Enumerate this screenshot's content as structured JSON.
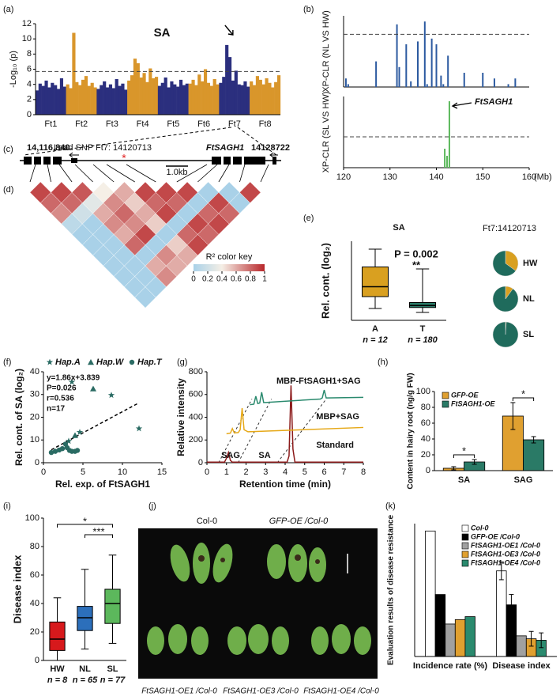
{
  "panel_labels": [
    "(a)",
    "(b)",
    "(c)",
    "(d)",
    "(e)",
    "(f)",
    "(g)",
    "(h)",
    "(i)",
    "(j)",
    "(k)"
  ],
  "gene_diagram": {
    "start": "14,116,840",
    "lead_snp": "Lead SNP Ft7: 14120713",
    "gene": "FtSAGH1",
    "end": "14128722",
    "scale": "1.0kb"
  },
  "photo": {
    "labels": [
      "Col-0",
      "GFP-OE /Col-0",
      "FtSAGH1-OE1 /Col-0",
      "FtSAGH1-OE3 /Col-0",
      "FtSAGH1-OE4 /Col-0"
    ]
  },
  "chart_data": [
    {
      "type": "manhattan",
      "title": "SA",
      "y_label": "-Log₁₀ (p)",
      "categories": [
        "Ft1",
        "Ft2",
        "Ft3",
        "Ft4",
        "Ft5",
        "Ft6",
        "Ft7",
        "Ft8"
      ],
      "colors": [
        "#2b2f7e",
        "#d9962b"
      ],
      "values": [
        [
          3.2,
          4.1,
          3.8,
          4.5,
          3.6,
          4.2,
          3.9,
          3.4,
          4.8,
          3.7
        ],
        [
          4.0,
          3.5,
          10.8,
          4.3,
          3.9,
          4.6,
          5.1,
          3.8,
          4.2,
          3.6
        ],
        [
          3.4,
          3.9,
          4.4,
          3.6,
          4.0,
          3.5,
          4.7,
          3.8,
          4.1,
          3.3
        ],
        [
          4.5,
          5.2,
          7.4,
          6.8,
          4.9,
          5.5,
          4.3,
          6.1,
          4.8,
          5.0
        ],
        [
          3.8,
          4.2,
          4.9,
          3.6,
          4.4,
          4.0,
          3.7,
          4.6,
          3.9,
          4.1
        ],
        [
          4.1,
          4.6,
          3.9,
          5.3,
          4.4,
          6.0,
          4.2,
          3.8,
          4.7,
          4.0
        ],
        [
          4.2,
          5.0,
          9.2,
          7.6,
          4.5,
          5.8,
          4.0,
          3.9,
          4.4,
          3.7
        ],
        [
          4.4,
          3.9,
          5.1,
          4.6,
          4.0,
          4.8,
          4.2,
          3.6,
          4.3,
          5.2
        ]
      ],
      "ylim": [
        0,
        12
      ],
      "yticks": [
        0,
        2,
        4,
        6,
        8,
        10,
        12
      ],
      "threshold": 5.7
    },
    {
      "type": "bar",
      "y_label": "XP-CLR (NL VS HW)",
      "color": "#2c5aa0",
      "x": [
        120.5,
        121,
        127,
        131.5,
        132,
        133.5,
        134.5,
        136,
        137.5,
        138,
        139,
        140,
        141,
        141.5,
        142.5,
        146,
        150,
        152.5,
        155.5,
        157
      ],
      "values": [
        3,
        1,
        9,
        22,
        7,
        15,
        2,
        16,
        23,
        1,
        17,
        15,
        4,
        1,
        11,
        5,
        5,
        3,
        1,
        3
      ],
      "xlim": [
        120,
        160
      ],
      "ylim": [
        0,
        25
      ],
      "threshold": 18.5
    },
    {
      "type": "bar",
      "y_label": "XP-CLR (SL VS HW)",
      "x_label": "(Mb)",
      "color": "#5cb85c",
      "annotation": "FtSAGH1",
      "x": [
        141.8,
        142.3,
        142.8
      ],
      "values": [
        8,
        5,
        28
      ],
      "xlim": [
        120,
        160
      ],
      "xticks": [
        120,
        130,
        140,
        150,
        160
      ],
      "ylim": [
        0,
        30
      ],
      "threshold": 13
    },
    {
      "type": "ld_heatmap",
      "legend_title": "R² color key",
      "ticks": [
        0,
        0.2,
        0.4,
        0.6,
        0.8,
        1
      ],
      "r2": [
        [
          0.9,
          0.8,
          0.7,
          0.1,
          0.0,
          0.0,
          0.0,
          0.0,
          0.0,
          0.0,
          0.0
        ],
        [
          0.9,
          0.8,
          0.2,
          0.0,
          0.0,
          0.0,
          0.0,
          0.0,
          0.0,
          0.0
        ],
        [
          0.85,
          0.3,
          0.6,
          0.7,
          0.6,
          0.8,
          0.0,
          0.6,
          0.7
        ],
        [
          0.4,
          0.7,
          0.8,
          0.7,
          0.9,
          0.0,
          0.7,
          0.6
        ],
        [
          0.6,
          0.5,
          0.6,
          0.5,
          0.0,
          0.5,
          0.6
        ],
        [
          0.9,
          0.8,
          0.9,
          0.0,
          0.8,
          0.9
        ],
        [
          0.9,
          0.8,
          0.0,
          0.9,
          0.8
        ],
        [
          0.9,
          0.0,
          0.8,
          0.9
        ],
        [
          0.0,
          0.9,
          0.8
        ],
        [
          0.0,
          0.0
        ],
        [
          0.9
        ]
      ]
    },
    {
      "type": "box",
      "title": "SA",
      "y_label": "Rel. cont. (log₂)",
      "categories": [
        "A",
        "T"
      ],
      "n_labels": [
        "n = 12",
        "n = 180"
      ],
      "colors": [
        "#d9a020",
        "#2a7a66"
      ],
      "boxes": [
        {
          "min": 6,
          "q1": 12,
          "median": 17,
          "q3": 27,
          "max": 36
        },
        {
          "min": 4,
          "q1": 6.5,
          "median": 7.5,
          "q3": 9,
          "max": 26
        }
      ],
      "ylim": [
        0,
        40
      ],
      "annotations": [
        "P = 0.002",
        "**"
      ]
    },
    {
      "type": "pie",
      "title": "Ft7:14120713",
      "categories": [
        "HW",
        "NL",
        "SL"
      ],
      "colors": [
        "#d9a020",
        "#1f6b5c"
      ],
      "values": [
        [
          35,
          65
        ],
        [
          10,
          90
        ],
        [
          1,
          99
        ]
      ]
    },
    {
      "type": "scatter",
      "x_label": "Rel. exp. of FtSAGH1",
      "y_label": "Rel. cont. of SA (log₂)",
      "series": [
        {
          "name": "Hap.A",
          "marker": "star",
          "color": "#2a6b63",
          "x": [
            3.6,
            8.6,
            12.1,
            4.6,
            3.2
          ],
          "values": [
            35.5,
            29.7,
            15,
            13.4,
            9.5
          ]
        },
        {
          "name": "Hap.W",
          "marker": "triangle",
          "color": "#2a6b63",
          "x": [
            6.3,
            4.0
          ],
          "values": [
            32.5,
            12
          ]
        },
        {
          "name": "Hap.T",
          "marker": "circle",
          "color": "#2a6b63",
          "x": [
            1,
            1.5,
            2,
            2.4,
            2.8,
            3,
            3.3,
            3.6,
            4,
            4.3
          ],
          "values": [
            4.5,
            5,
            5.6,
            6.2,
            8.2,
            6.6,
            5.4,
            5,
            5,
            5.4
          ]
        }
      ],
      "fit": {
        "label": "y=1.86x+3.839",
        "slope": 1.86,
        "intercept": 3.839
      },
      "annotations": [
        "P=0.026",
        "r=0.536",
        "n=17"
      ],
      "xlim": [
        0,
        15
      ],
      "xticks": [
        0,
        5,
        10,
        15
      ],
      "ylim": [
        0,
        40
      ],
      "yticks": [
        0,
        10,
        20,
        30,
        40
      ]
    },
    {
      "type": "line",
      "x_label": "Retention time (min)",
      "y_label": "Relative intensity",
      "series": [
        {
          "name": "Standard",
          "color": "#8b1a1a",
          "x": [
            0,
            0.9,
            1.0,
            1.1,
            1.2,
            1.3,
            4.1,
            4.2,
            4.3,
            4.4,
            4.5,
            8
          ],
          "values": [
            5,
            5,
            40,
            90,
            20,
            5,
            5,
            60,
            680,
            120,
            5,
            5
          ]
        },
        {
          "name": "MBP+SAG",
          "color": "#e6a817",
          "x": [
            1.0,
            1.2,
            1.3,
            1.4,
            1.6,
            1.7,
            1.8,
            1.9,
            2.1,
            8
          ],
          "values": [
            255,
            260,
            300,
            262,
            265,
            290,
            480,
            290,
            272,
            310
          ]
        },
        {
          "name": "MBP-FtSAGH1+SAG",
          "color": "#2a8a6e",
          "x": [
            2.2,
            2.4,
            2.5,
            2.6,
            2.7,
            2.8,
            2.9,
            3.0,
            5.8,
            5.9,
            6.0,
            6.1,
            8
          ],
          "values": [
            510,
            515,
            585,
            520,
            525,
            620,
            530,
            530,
            560,
            570,
            640,
            570,
            575
          ]
        }
      ],
      "annotations": [
        "SAG",
        "SA"
      ],
      "xlim": [
        0,
        8
      ],
      "xticks": [
        0,
        1,
        2,
        3,
        4,
        5,
        6,
        7,
        8
      ],
      "ylim": [
        0,
        800
      ],
      "yticks": [
        0,
        200,
        400,
        600,
        800
      ]
    },
    {
      "type": "grouped_bar",
      "y_label": "Content in hairy root (ng/g FW)",
      "categories": [
        "SA",
        "SAG"
      ],
      "series": [
        {
          "name": "GFP-OE",
          "color": "#e0a030",
          "values": [
            3,
            69
          ],
          "errors": [
            2,
            17
          ]
        },
        {
          "name": "FtSAGH1-OE",
          "color": "#2a7a66",
          "values": [
            11,
            39
          ],
          "errors": [
            3,
            4
          ]
        }
      ],
      "annotations": [
        "*",
        "*"
      ],
      "ylim": [
        0,
        100
      ],
      "yticks": [
        0,
        20,
        40,
        60,
        80,
        100
      ]
    },
    {
      "type": "box",
      "y_label": "Disease index",
      "categories": [
        "HW",
        "NL",
        "SL"
      ],
      "n_labels": [
        "n = 8",
        "n = 65",
        "n = 77"
      ],
      "colors": [
        "#d7191c",
        "#2c6fbb",
        "#5cb85c"
      ],
      "boxes": [
        {
          "min": 0,
          "q1": 7,
          "median": 15,
          "q3": 27,
          "max": 44
        },
        {
          "min": 8,
          "q1": 21,
          "median": 30,
          "q3": 38,
          "max": 64
        },
        {
          "min": 12,
          "q1": 26,
          "median": 40,
          "q3": 50,
          "max": 74
        }
      ],
      "ylim": [
        0,
        100
      ],
      "yticks": [
        0,
        20,
        40,
        60,
        80,
        100
      ],
      "annotations": [
        "*",
        "***"
      ]
    },
    {
      "type": "grouped_bar",
      "y_label": "Evaluation results of disease resistance",
      "categories": [
        "Incidence rate (%)",
        "Disease index"
      ],
      "series": [
        {
          "name": "Col-0",
          "color": "#ffffff",
          "values": [
            85,
            58
          ],
          "errors": [
            null,
            6
          ]
        },
        {
          "name": "GFP-OE /Col-0",
          "color": "#000000",
          "values": [
            42,
            35
          ],
          "errors": [
            null,
            7
          ]
        },
        {
          "name": "FtSAGH1-OE1 /Col-0",
          "color": "#a0a0a0",
          "values": [
            22,
            14
          ],
          "errors": [
            null,
            null
          ]
        },
        {
          "name": "FtSAGH1-OE3 /Col-0",
          "color": "#e0a030",
          "values": [
            25,
            12
          ],
          "errors": [
            null,
            5
          ]
        },
        {
          "name": "FtSAGH1-OE4 /Col-0",
          "color": "#2a8a6e",
          "values": [
            27,
            11
          ],
          "errors": [
            null,
            5
          ]
        }
      ],
      "ylim": [
        0,
        90
      ]
    }
  ]
}
